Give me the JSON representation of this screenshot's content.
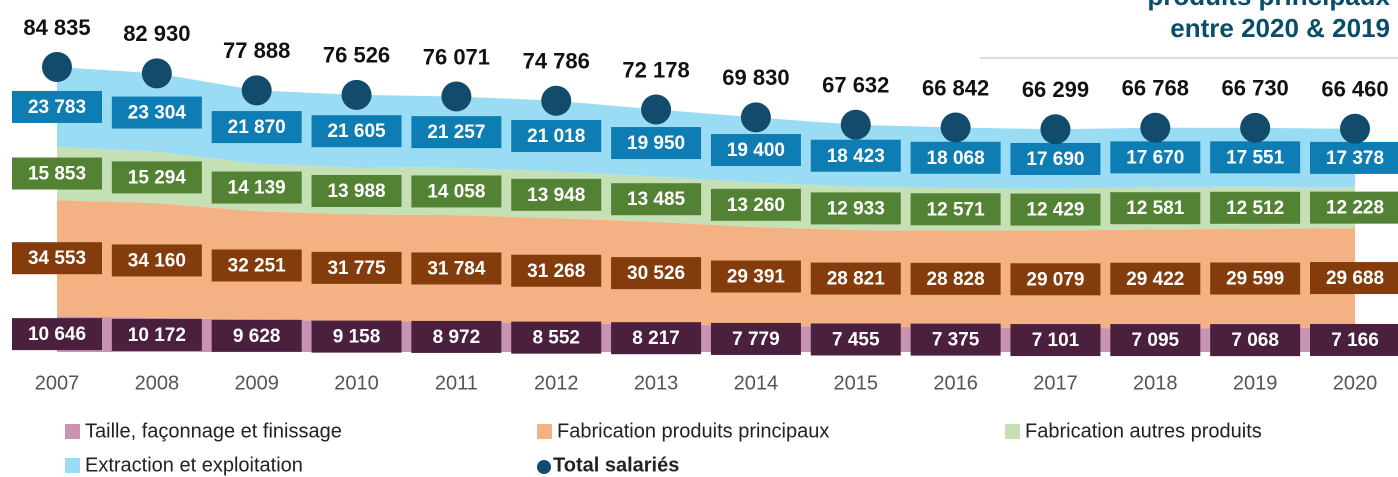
{
  "chart_data": {
    "type": "stacked_area",
    "annotations": [
      "produits principaux",
      "entre 2020 & 2019"
    ],
    "categories": [
      "2007",
      "2008",
      "2009",
      "2010",
      "2011",
      "2012",
      "2013",
      "2014",
      "2015",
      "2016",
      "2017",
      "2018",
      "2019",
      "2020"
    ],
    "series": [
      {
        "name": "Taille, façonnage et finissage",
        "color": "#c994b4",
        "label_color": "#4b1f3e",
        "values": [
          10646,
          10172,
          9628,
          9158,
          8972,
          8552,
          8217,
          7779,
          7455,
          7375,
          7101,
          7095,
          7068,
          7166
        ],
        "value_labels": [
          "10 646",
          "10 172",
          "9 628",
          "9 158",
          "8 972",
          "8 552",
          "8 217",
          "7 779",
          "7 455",
          "7 375",
          "7 101",
          "7 095",
          "7 068",
          "7 166"
        ]
      },
      {
        "name": "Fabrication produits principaux",
        "color": "#f4b183",
        "label_color": "#843c0c",
        "values": [
          34553,
          34160,
          32251,
          31775,
          31784,
          31268,
          30526,
          29391,
          28821,
          28828,
          29079,
          29422,
          29599,
          29688
        ],
        "value_labels": [
          "34 553",
          "34 160",
          "32 251",
          "31 775",
          "31 784",
          "31 268",
          "30 526",
          "29 391",
          "28 821",
          "28 828",
          "29 079",
          "29 422",
          "29 599",
          "29 688"
        ]
      },
      {
        "name": "Fabrication autres produits",
        "color": "#c5e0b4",
        "label_color": "#548235",
        "values": [
          15853,
          15294,
          14139,
          13988,
          14058,
          13948,
          13485,
          13260,
          12933,
          12571,
          12429,
          12581,
          12512,
          12228
        ],
        "value_labels": [
          "15 853",
          "15 294",
          "14 139",
          "13 988",
          "14 058",
          "13 948",
          "13 485",
          "13 260",
          "12 933",
          "12 571",
          "12 429",
          "12 581",
          "12 512",
          "12 228"
        ]
      },
      {
        "name": "Extraction et exploitation",
        "color": "#9bdcf5",
        "label_color": "#0e7db3",
        "values": [
          23783,
          23304,
          21870,
          21605,
          21257,
          21018,
          19950,
          19400,
          18423,
          18068,
          17690,
          17670,
          17551,
          17378
        ],
        "value_labels": [
          "23 783",
          "23 304",
          "21 870",
          "21 605",
          "21 257",
          "21 018",
          "19 950",
          "19 400",
          "18 423",
          "18 068",
          "17 690",
          "17 670",
          "17 551",
          "17 378"
        ]
      }
    ],
    "total": {
      "name": "Total salariés",
      "color": "#124b6b",
      "values": [
        84835,
        82930,
        77888,
        76526,
        76071,
        74786,
        72178,
        69830,
        67632,
        66842,
        66299,
        66768,
        66730,
        66460
      ],
      "value_labels": [
        "84 835",
        "82 930",
        "77 888",
        "76 526",
        "76 071",
        "74 786",
        "72 178",
        "69 830",
        "67 632",
        "66 842",
        "66 299",
        "66 768",
        "66 730",
        "66 460"
      ]
    }
  }
}
